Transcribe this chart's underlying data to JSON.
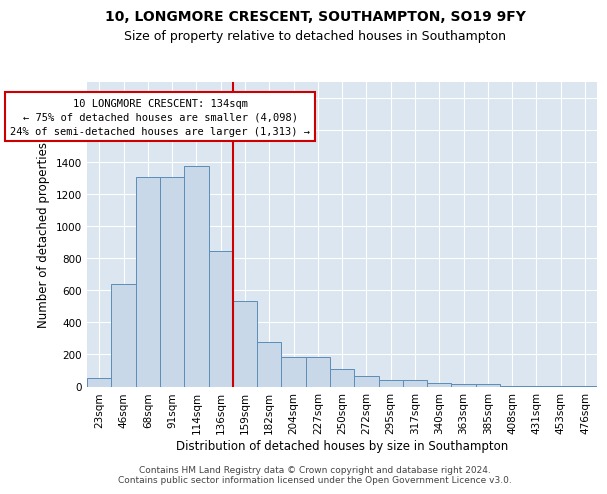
{
  "title1": "10, LONGMORE CRESCENT, SOUTHAMPTON, SO19 9FY",
  "title2": "Size of property relative to detached houses in Southampton",
  "xlabel": "Distribution of detached houses by size in Southampton",
  "ylabel": "Number of detached properties",
  "categories": [
    "23sqm",
    "46sqm",
    "68sqm",
    "91sqm",
    "114sqm",
    "136sqm",
    "159sqm",
    "182sqm",
    "204sqm",
    "227sqm",
    "250sqm",
    "272sqm",
    "295sqm",
    "317sqm",
    "340sqm",
    "363sqm",
    "385sqm",
    "408sqm",
    "431sqm",
    "453sqm",
    "476sqm"
  ],
  "values": [
    55,
    640,
    1305,
    1305,
    1375,
    845,
    530,
    280,
    185,
    185,
    110,
    65,
    38,
    38,
    22,
    15,
    15,
    5,
    3,
    2,
    5
  ],
  "bar_color": "#c8d8e8",
  "bar_edge_color": "#5b8db8",
  "background_color": "#dce6f0",
  "vline_color": "#cc0000",
  "ylim": [
    0,
    1900
  ],
  "yticks": [
    0,
    200,
    400,
    600,
    800,
    1000,
    1200,
    1400,
    1600,
    1800
  ],
  "annotation_text": "10 LONGMORE CRESCENT: 134sqm\n← 75% of detached houses are smaller (4,098)\n24% of semi-detached houses are larger (1,313) →",
  "annotation_box_color": "#ffffff",
  "annotation_border_color": "#cc0000",
  "footer_text": "Contains HM Land Registry data © Crown copyright and database right 2024.\nContains public sector information licensed under the Open Government Licence v3.0.",
  "title1_fontsize": 10,
  "title2_fontsize": 9,
  "ylabel_fontsize": 8.5,
  "xlabel_fontsize": 8.5,
  "tick_fontsize": 7.5,
  "annotation_fontsize": 7.5,
  "footer_fontsize": 6.5
}
